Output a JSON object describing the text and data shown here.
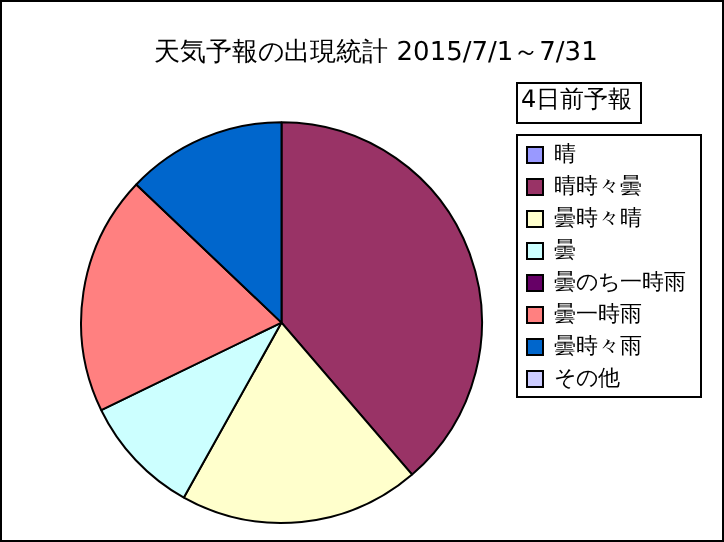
{
  "chart_data": {
    "type": "pie",
    "title": "天気予報の出現統計 2015/7/1～7/31",
    "annotations": [
      "4日前予報"
    ],
    "categories": [
      "晴",
      "晴時々曇",
      "曇時々晴",
      "曇",
      "曇のち一時雨",
      "曇一時雨",
      "曇時々雨",
      "その他"
    ],
    "values": [
      0,
      38.7,
      19.4,
      9.7,
      0,
      19.3,
      12.9,
      0
    ],
    "colors": [
      "#9999ff",
      "#993366",
      "#ffffcc",
      "#ccffff",
      "#660066",
      "#ff8080",
      "#0066cc",
      "#ccccff"
    ],
    "legend": "right"
  }
}
